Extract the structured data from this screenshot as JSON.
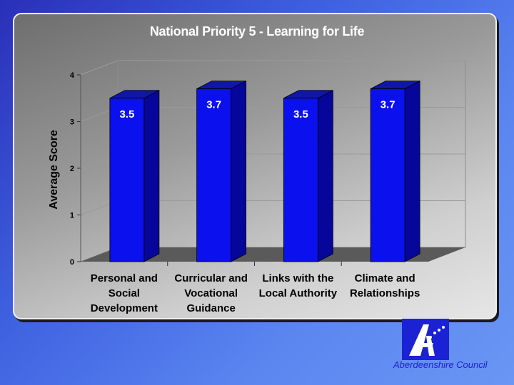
{
  "title": "National Priority 5 -  Learning for Life",
  "logo_text": "Aberdeenshire Council",
  "colors": {
    "bar": "#0b10ee",
    "bar_side": "#06079a",
    "bar_top": "#1016a6",
    "floor": "#5a5a5a"
  },
  "chart_data": {
    "type": "bar",
    "categories": [
      [
        "Personal and",
        "Social",
        "Development"
      ],
      [
        "Curricular and",
        "Vocational",
        "Guidance"
      ],
      [
        "Links with the",
        "Local Authority"
      ],
      [
        "Climate and",
        "Relationships"
      ]
    ],
    "values": [
      3.5,
      3.7,
      3.5,
      3.7
    ],
    "data_labels": [
      "3.5",
      "3.7",
      "3.5",
      "3.7"
    ],
    "ylabel": "Average Score",
    "ylim": [
      0,
      4
    ],
    "yticks": [
      "0",
      "1",
      "2",
      "3",
      "4"
    ],
    "grid": true
  }
}
